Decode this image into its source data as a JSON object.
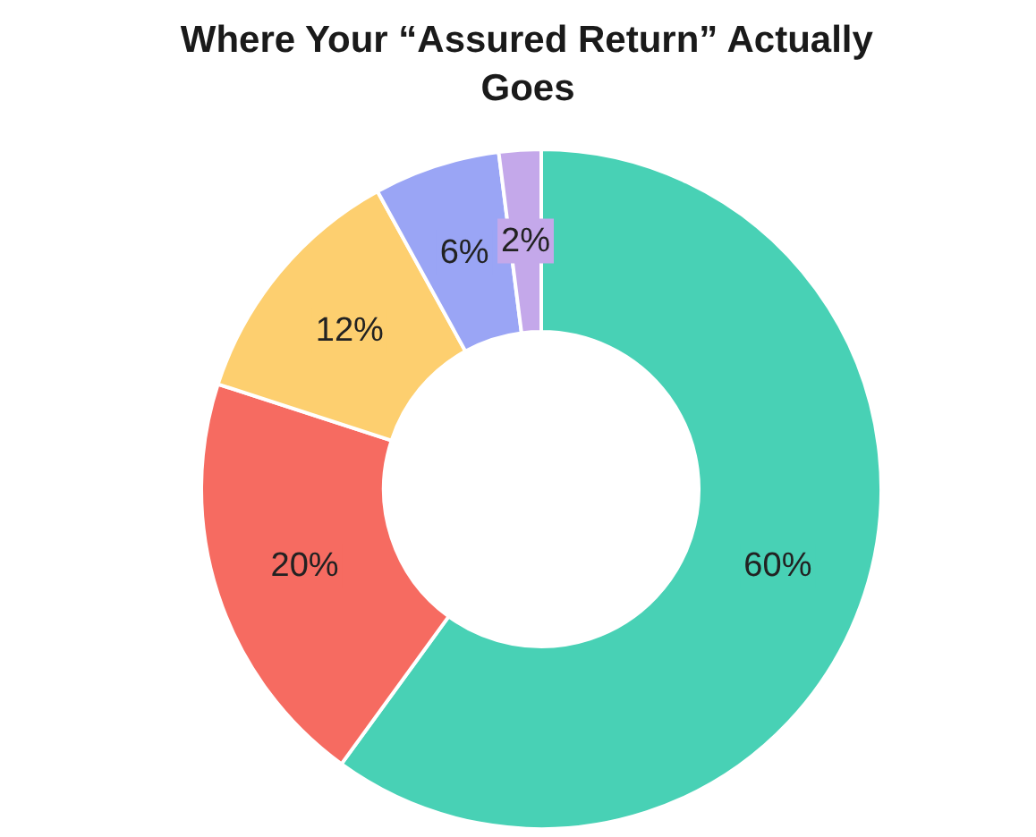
{
  "chart_data": {
    "type": "donut",
    "title": "Where Your “Assured Return” Actually Goes",
    "categories": [
      null,
      null,
      null,
      null,
      null
    ],
    "values": [
      60,
      20,
      12,
      6,
      2
    ],
    "colors": [
      "#48d1b5",
      "#f66b61",
      "#fdcf6f",
      "#9aa5f5",
      "#c4a8ea"
    ],
    "value_labels": [
      "60%",
      "20%",
      "12%",
      "6%",
      "2%"
    ]
  }
}
